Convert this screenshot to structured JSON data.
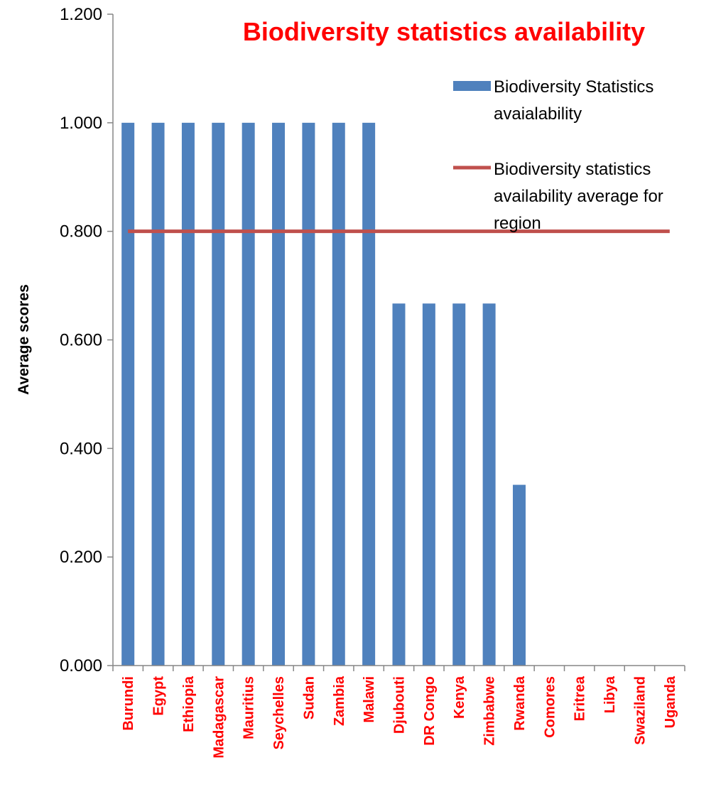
{
  "chart_data": {
    "type": "bar",
    "title": "Biodiversity statistics availability",
    "xlabel": "",
    "ylabel": "Average scores",
    "ylim": [
      0,
      1.2
    ],
    "yticks": [
      "0.000",
      "0.200",
      "0.400",
      "0.600",
      "0.800",
      "1.000",
      "1.200"
    ],
    "categories": [
      "Burundi",
      "Egypt",
      "Ethiopia",
      "Madagascar",
      "Mauritius",
      "Seychelles",
      "Sudan",
      "Zambia",
      "Malawi",
      "Djubouti",
      "DR Congo",
      "Kenya",
      "Zimbabwe",
      "Rwanda",
      "Comores",
      "Eritrea",
      "Libya",
      "Swaziland",
      "Uganda"
    ],
    "series": [
      {
        "name": "Biodiversity Statistics avaialability",
        "kind": "bar",
        "color": "#4f81bd",
        "values": [
          1.0,
          1.0,
          1.0,
          1.0,
          1.0,
          1.0,
          1.0,
          1.0,
          1.0,
          0.667,
          0.667,
          0.667,
          0.667,
          0.333,
          0,
          0,
          0,
          0,
          0
        ]
      },
      {
        "name": "Biodiversity statistics availability average for region",
        "kind": "line",
        "color": "#c0504d",
        "values": [
          0.8,
          0.8,
          0.8,
          0.8,
          0.8,
          0.8,
          0.8,
          0.8,
          0.8,
          0.8,
          0.8,
          0.8,
          0.8,
          0.8,
          0.8,
          0.8,
          0.8,
          0.8,
          0.8
        ]
      }
    ],
    "legend": {
      "placement": "top-right",
      "bar_label_lines": [
        "Biodiversity Statistics",
        "avaialability"
      ],
      "line_label_lines": [
        "Biodiversity statistics",
        "availability average for",
        "region"
      ]
    },
    "grid": false,
    "colors": {
      "title": "#ff0000",
      "tick_labels": "#ff0000",
      "axis": "#868686"
    }
  }
}
